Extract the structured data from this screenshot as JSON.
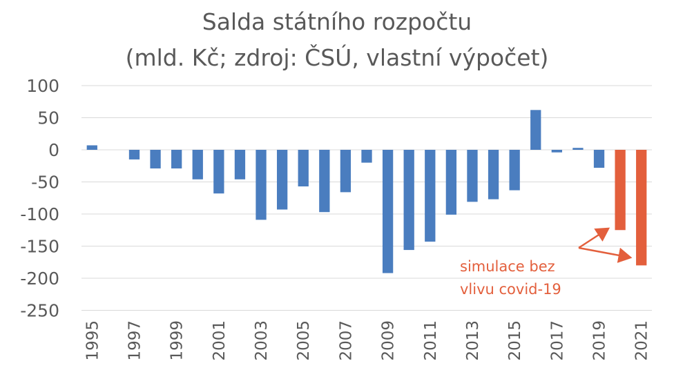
{
  "chart_data": {
    "type": "bar",
    "title": "Salda státního rozpočtu",
    "subtitle": "(mld. Kč; zdroj: ČSÚ, vlastní výpočet)",
    "xlabel": "",
    "ylabel": "",
    "ylim": [
      -250,
      100
    ],
    "yticks": [
      100,
      50,
      0,
      -50,
      -100,
      -150,
      -200,
      -250
    ],
    "grid": true,
    "categories": [
      1995,
      1996,
      1997,
      1998,
      1999,
      2000,
      2001,
      2002,
      2003,
      2004,
      2005,
      2006,
      2007,
      2008,
      2009,
      2010,
      2011,
      2012,
      2013,
      2014,
      2015,
      2016,
      2017,
      2018,
      2019,
      2020,
      2021
    ],
    "tick_labels": [
      "1995",
      "1997",
      "1999",
      "2001",
      "2003",
      "2005",
      "2007",
      "2009",
      "2011",
      "2013",
      "2015",
      "2017",
      "2019",
      "2021"
    ],
    "values": [
      7,
      0,
      -15,
      -29,
      -29,
      -46,
      -68,
      -46,
      -109,
      -93,
      -57,
      -97,
      -66,
      -20,
      -192,
      -156,
      -143,
      -101,
      -81,
      -77,
      -63,
      62,
      -4,
      3,
      -28,
      -125,
      -180
    ],
    "colors": {
      "actual": "#4a7dbf",
      "simulation": "#e35f3c",
      "grid": "#d9d9d9",
      "text": "#595959"
    },
    "simulation_categories": [
      2020,
      2021
    ],
    "annotation": {
      "lines": [
        "simulace bez",
        "vlivu covid-19"
      ],
      "color": "#e35f3c",
      "arrow_targets": [
        2020,
        2021
      ]
    }
  }
}
